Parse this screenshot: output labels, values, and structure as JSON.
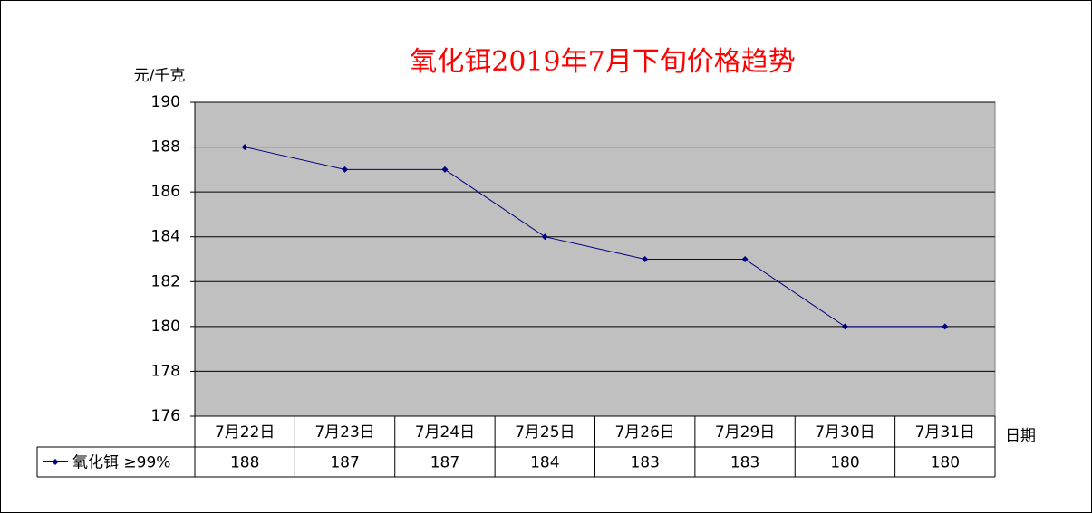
{
  "chart_data": {
    "type": "line",
    "title": "氧化铒2019年7月下旬价格趋势",
    "y_label": "元/千克",
    "x_label": "日期",
    "categories": [
      "7月22日",
      "7月23日",
      "7月24日",
      "7月25日",
      "7月26日",
      "7月29日",
      "7月30日",
      "7月31日"
    ],
    "series": [
      {
        "name": "氧化铒 ≥99%",
        "color": "#000080",
        "values": [
          188,
          187,
          187,
          184,
          183,
          183,
          180,
          180
        ]
      }
    ],
    "ylim": [
      176,
      190
    ],
    "yticks": [
      176,
      178,
      180,
      182,
      184,
      186,
      188,
      190
    ],
    "grid": true,
    "plot_background": "#c0c0c0",
    "data_table": true
  }
}
